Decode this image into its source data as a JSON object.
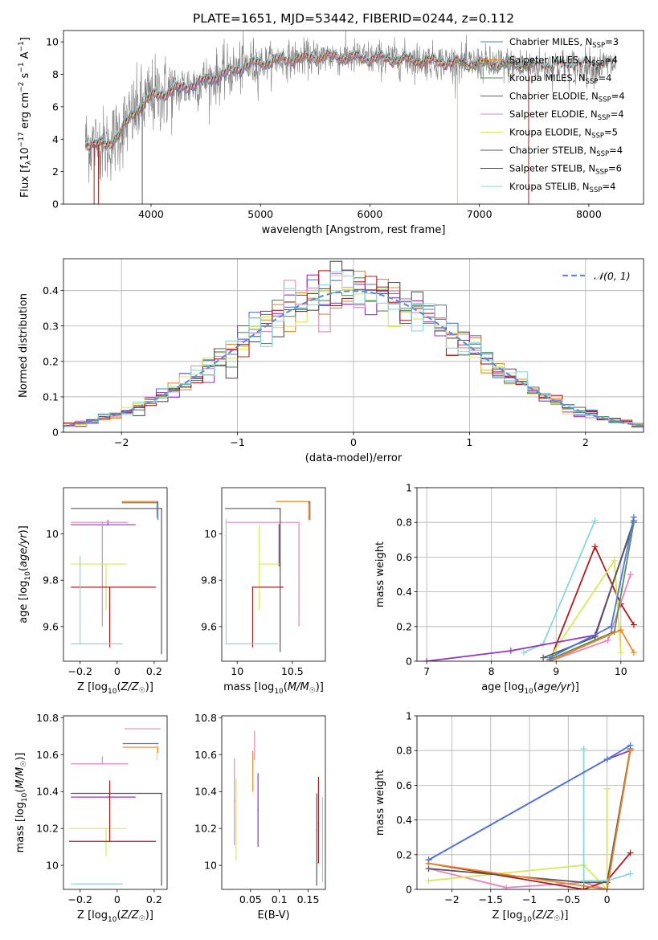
{
  "figure": {
    "title": "PLATE=1651, MJD=53442, FIBERID=0244, z=0.112"
  },
  "colors": {
    "series": [
      "#4a78d6",
      "#e8882a",
      "#5b8d5e",
      "#9633c4",
      "#e483c0",
      "#d8e856",
      "#555555",
      "#b01a1a",
      "#86d8dd"
    ],
    "spectrum_gray": "#808080",
    "normal_curve": "#5b8fd9",
    "grid": "#b0b0b0"
  },
  "legend_spectrum": [
    {
      "name": "Chabrier MILES, N",
      "sub": "SSP",
      "tail": "=3"
    },
    {
      "name": "Salpeter MILES, N",
      "sub": "SSP",
      "tail": "=4"
    },
    {
      "name": "Kroupa MILES, N",
      "sub": "SSP",
      "tail": "=4"
    },
    {
      "name": "Chabrier ELODIE, N",
      "sub": "SSP",
      "tail": "=4"
    },
    {
      "name": "Salpeter ELODIE, N",
      "sub": "SSP",
      "tail": "=4"
    },
    {
      "name": "Kroupa ELODIE, N",
      "sub": "SSP",
      "tail": "=5"
    },
    {
      "name": "Chabrier STELIB, N",
      "sub": "SSP",
      "tail": "=4"
    },
    {
      "name": "Salpeter STELIB, N",
      "sub": "SSP",
      "tail": "=6"
    },
    {
      "name": "Kroupa STELIB, N",
      "sub": "SSP",
      "tail": "=4"
    }
  ],
  "legend_hist": "𝒩(0, 1)",
  "chart_data": [
    {
      "id": "spectrum",
      "type": "line",
      "title": "PLATE=1651, MJD=53442, FIBERID=0244, z=0.112",
      "xlabel": "wavelength [Angstrom, rest frame]",
      "ylabel": "Flux [f_λ 10^-17 erg cm^-2 s^-1 A^-1]",
      "xlim": [
        3200,
        8500
      ],
      "ylim": [
        0,
        10.7
      ],
      "xticks": [
        4000,
        5000,
        6000,
        7000,
        8000
      ],
      "yticks": [
        0,
        2,
        4,
        6,
        8,
        10
      ],
      "continuum": [
        [
          3400,
          3.8
        ],
        [
          3600,
          3.6
        ],
        [
          3700,
          4.3
        ],
        [
          3800,
          5.2
        ],
        [
          3900,
          6.0
        ],
        [
          4000,
          6.6
        ],
        [
          4100,
          6.8
        ],
        [
          4300,
          7.2
        ],
        [
          4500,
          7.6
        ],
        [
          4700,
          8.1
        ],
        [
          4900,
          8.6
        ],
        [
          5200,
          8.9
        ],
        [
          5600,
          9.1
        ],
        [
          6000,
          9.0
        ],
        [
          6400,
          8.9
        ],
        [
          6800,
          8.7
        ],
        [
          7200,
          8.6
        ],
        [
          7600,
          8.5
        ],
        [
          8000,
          8.5
        ],
        [
          8250,
          8.6
        ]
      ],
      "series": [
        {
          "name": "Chabrier MILES, N_SSP=3",
          "range": [
            3400,
            7500
          ]
        },
        {
          "name": "Salpeter MILES, N_SSP=4",
          "range": [
            3400,
            7500
          ]
        },
        {
          "name": "Kroupa MILES, N_SSP=4",
          "range": [
            3400,
            7500
          ]
        },
        {
          "name": "Chabrier ELODIE, N_SSP=4",
          "range": [
            3400,
            6800
          ]
        },
        {
          "name": "Salpeter ELODIE, N_SSP=4",
          "range": [
            3400,
            6800
          ]
        },
        {
          "name": "Kroupa ELODIE, N_SSP=5",
          "range": [
            3400,
            6800
          ]
        },
        {
          "name": "Chabrier STELIB, N_SSP=4",
          "range": [
            3400,
            8250
          ]
        },
        {
          "name": "Salpeter STELIB, N_SSP=6",
          "range": [
            3400,
            8250
          ]
        },
        {
          "name": "Kroupa STELIB, N_SSP=4",
          "range": [
            3400,
            8250
          ]
        }
      ]
    },
    {
      "id": "residuals",
      "type": "step-histogram",
      "xlabel": "(data-model)/error",
      "ylabel": "Normed distribution",
      "xlim": [
        -2.5,
        2.5
      ],
      "ylim": [
        0,
        0.49
      ],
      "xticks": [
        -2,
        -1,
        0,
        1,
        2
      ],
      "yticks": [
        0.0,
        0.1,
        0.2,
        0.3,
        0.4
      ],
      "bin_width": 0.1,
      "grid": true,
      "legend": "top-right"
    },
    {
      "id": "age-vs-Z",
      "type": "errorbar",
      "xlabel": "Z [log10(Z/Z☉)]",
      "ylabel": "age [log10(age/yr)]",
      "xlim": [
        -0.29,
        0.27
      ],
      "ylim": [
        9.45,
        10.2
      ],
      "xticks": [
        -0.2,
        0.0,
        0.2
      ],
      "yticks": [
        9.6,
        9.8,
        10.0
      ],
      "points": [
        {
          "s": 0,
          "x": 0.22,
          "y": 10.14,
          "xerr": 0.0,
          "yerr": [
            0.08,
            0.0
          ]
        },
        {
          "s": 1,
          "x": 0.215,
          "y": 10.14,
          "xerr": [
            0.19,
            0.0
          ],
          "yerr": [
            0.07,
            0.0
          ]
        },
        {
          "s": 2,
          "x": 0.215,
          "y": 10.135,
          "xerr": [
            0.19,
            0.0
          ],
          "yerr": [
            0.0,
            0.0
          ]
        },
        {
          "s": 3,
          "x": -0.05,
          "y": 10.04,
          "xerr": [
            0.2,
            0.15
          ],
          "yerr": [
            0.0,
            0.02
          ]
        },
        {
          "s": 4,
          "x": -0.08,
          "y": 10.05,
          "xerr": [
            0.17,
            0.14
          ],
          "yerr": [
            0.45,
            0.0
          ]
        },
        {
          "s": 5,
          "x": -0.06,
          "y": 9.87,
          "xerr": [
            0.19,
            0.11
          ],
          "yerr": [
            0.2,
            0.0
          ]
        },
        {
          "s": 6,
          "x": 0.24,
          "y": 10.11,
          "xerr": [
            0.49,
            0.0
          ],
          "yerr": [
            0.63,
            0.0
          ]
        },
        {
          "s": 7,
          "x": -0.04,
          "y": 9.77,
          "xerr": [
            0.21,
            0.25
          ],
          "yerr": [
            0.26,
            0.0
          ]
        },
        {
          "s": 8,
          "x": -0.2,
          "y": 9.525,
          "xerr": [
            0.05,
            0.23
          ],
          "yerr": [
            0.0,
            0.38
          ]
        }
      ]
    },
    {
      "id": "age-vs-mass",
      "type": "errorbar",
      "xlabel": "mass [log10(M/M☉)]",
      "ylabel": "",
      "xlim": [
        9.86,
        10.8
      ],
      "ylim": [
        9.45,
        10.2
      ],
      "xticks": [
        10.0,
        10.5
      ],
      "yticks": [
        9.6,
        9.8,
        10.0
      ],
      "points": [
        {
          "s": 0,
          "x": 10.66,
          "y": 10.14,
          "xerr": 0.0,
          "yerr": [
            0.08,
            0.0
          ]
        },
        {
          "s": 1,
          "x": 10.65,
          "y": 10.14,
          "xerr": [
            0.3,
            0.0
          ],
          "yerr": [
            0.08,
            0.0
          ]
        },
        {
          "s": 2,
          "x": 10.65,
          "y": 10.135,
          "xerr": [
            0.0,
            0.0
          ],
          "yerr": [
            0.0,
            0.0
          ]
        },
        {
          "s": 3,
          "x": 10.38,
          "y": 10.04,
          "xerr": 0.0,
          "yerr": [
            0.18,
            0.0
          ]
        },
        {
          "s": 4,
          "x": 10.56,
          "y": 10.05,
          "xerr": [
            0.66,
            0.0
          ],
          "yerr": [
            0.45,
            0.0
          ]
        },
        {
          "s": 5,
          "x": 10.2,
          "y": 9.87,
          "xerr": [
            0.0,
            0.2
          ],
          "yerr": [
            0.2,
            0.17
          ]
        },
        {
          "s": 6,
          "x": 10.39,
          "y": 10.11,
          "xerr": [
            0.5,
            0.0
          ],
          "yerr": [
            0.62,
            0.0
          ]
        },
        {
          "s": 7,
          "x": 10.14,
          "y": 9.77,
          "xerr": [
            0.0,
            0.28
          ],
          "yerr": [
            0.26,
            0.0
          ]
        },
        {
          "s": 8,
          "x": 9.9,
          "y": 9.525,
          "xerr": [
            0.0,
            0.47
          ],
          "yerr": [
            0.0,
            0.54
          ]
        }
      ]
    },
    {
      "id": "weight-vs-age",
      "type": "line",
      "xlabel": "age [log10(age/yr)]",
      "ylabel": "mass weight",
      "xlim": [
        6.85,
        10.35
      ],
      "ylim": [
        0,
        1.0
      ],
      "xticks": [
        7,
        8,
        9,
        10
      ],
      "yticks": [
        0.0,
        0.2,
        0.4,
        0.6,
        0.8,
        1.0
      ],
      "grid": true,
      "series": [
        {
          "s": 8,
          "points": [
            [
              8.5,
              0.05
            ],
            [
              8.8,
              0.1
            ],
            [
              9.6,
              0.81
            ]
          ]
        },
        {
          "s": 7,
          "points": [
            [
              8.9,
              0.0
            ],
            [
              9.6,
              0.66
            ],
            [
              10.0,
              0.33
            ],
            [
              10.2,
              0.21
            ]
          ]
        },
        {
          "s": 5,
          "points": [
            [
              8.9,
              0.02
            ],
            [
              9.9,
              0.58
            ],
            [
              10.0,
              0.05
            ]
          ]
        },
        {
          "s": 3,
          "points": [
            [
              7.0,
              0.0
            ],
            [
              8.3,
              0.06
            ],
            [
              9.6,
              0.15
            ],
            [
              10.2,
              0.8
            ]
          ]
        },
        {
          "s": 6,
          "points": [
            [
              8.8,
              0.02
            ],
            [
              9.6,
              0.14
            ],
            [
              10.2,
              0.81
            ]
          ]
        },
        {
          "s": 4,
          "points": [
            [
              8.9,
              0.0
            ],
            [
              9.8,
              0.12
            ],
            [
              10.15,
              0.5
            ]
          ]
        },
        {
          "s": 2,
          "points": [
            [
              8.9,
              0.01
            ],
            [
              9.9,
              0.17
            ],
            [
              10.2,
              0.8
            ]
          ]
        },
        {
          "s": 1,
          "points": [
            [
              8.9,
              0.0
            ],
            [
              10.0,
              0.18
            ],
            [
              10.2,
              0.05
            ]
          ]
        },
        {
          "s": 0,
          "points": [
            [
              8.9,
              0.02
            ],
            [
              9.85,
              0.2
            ],
            [
              10.2,
              0.83
            ]
          ]
        }
      ]
    },
    {
      "id": "mass-vs-Z",
      "type": "errorbar",
      "xlabel": "Z [log10(Z/Z☉)]",
      "ylabel": "mass [log10(M/M☉)]",
      "xlim": [
        -0.29,
        0.27
      ],
      "ylim": [
        9.87,
        10.81
      ],
      "xticks": [
        -0.2,
        0.0,
        0.2
      ],
      "yticks": [
        10.0,
        10.2,
        10.4,
        10.6,
        10.8
      ],
      "points": [
        {
          "s": 0,
          "x": 0.22,
          "y": 10.66,
          "xerr": [
            0.19,
            0.0
          ],
          "yerr": [
            0.0,
            0.0
          ]
        },
        {
          "s": 4,
          "x": 0.23,
          "y": 10.74,
          "xerr": [
            0.19,
            0.0
          ],
          "yerr": [
            0.0,
            0.0
          ]
        },
        {
          "s": 1,
          "x": 0.22,
          "y": 10.64,
          "xerr": [
            0.19,
            0.0
          ],
          "yerr": [
            0.03,
            0.0
          ]
        },
        {
          "s": 5,
          "x": 0.215,
          "y": 10.65,
          "xerr": 0.0,
          "yerr": [
            0.08,
            0.0
          ]
        },
        {
          "s": 3,
          "x": -0.05,
          "y": 10.37,
          "xerr": [
            0.2,
            0.15
          ],
          "yerr": [
            0.0,
            0.0
          ]
        },
        {
          "s": 4,
          "x": -0.08,
          "y": 10.55,
          "xerr": [
            0.17,
            0.14
          ],
          "yerr": [
            0.0,
            0.04
          ]
        },
        {
          "s": 5,
          "x": -0.06,
          "y": 10.2,
          "xerr": [
            0.2,
            0.11
          ],
          "yerr": [
            0.15,
            0.0
          ]
        },
        {
          "s": 6,
          "x": 0.24,
          "y": 10.39,
          "xerr": [
            0.49,
            0.0
          ],
          "yerr": [
            0.5,
            0.0
          ]
        },
        {
          "s": 7,
          "x": -0.04,
          "y": 10.13,
          "xerr": [
            0.22,
            0.25
          ],
          "yerr": [
            0.0,
            0.33
          ]
        },
        {
          "s": 8,
          "x": -0.2,
          "y": 9.9,
          "xerr": [
            0.05,
            0.23
          ],
          "yerr": [
            0.0,
            0.0
          ]
        }
      ]
    },
    {
      "id": "mass-vs-ebv",
      "type": "errorbar",
      "xlabel": "E(B-V)",
      "ylabel": "",
      "xlim": [
        0.0,
        0.18
      ],
      "ylim": [
        9.87,
        10.81
      ],
      "xticks": [
        0.05,
        0.1,
        0.15
      ],
      "yticks": [
        10.0,
        10.2,
        10.4,
        10.6,
        10.8
      ],
      "points": [
        {
          "s": 4,
          "x": 0.057,
          "y": 10.65,
          "xerr": 0.0,
          "yerr": [
            0.08,
            0.08
          ]
        },
        {
          "s": 1,
          "x": 0.054,
          "y": 10.54,
          "xerr": 0.0,
          "yerr": [
            0.14,
            0.08
          ]
        },
        {
          "s": 3,
          "x": 0.063,
          "y": 10.3,
          "xerr": 0.0,
          "yerr": [
            0.2,
            0.2
          ]
        },
        {
          "s": 4,
          "x": 0.022,
          "y": 10.35,
          "xerr": 0.0,
          "yerr": [
            0.24,
            0.23
          ]
        },
        {
          "s": 5,
          "x": 0.025,
          "y": 10.25,
          "xerr": 0.0,
          "yerr": [
            0.22,
            0.22
          ]
        },
        {
          "s": 6,
          "x": 0.165,
          "y": 10.19,
          "xerr": 0.0,
          "yerr": [
            0.3,
            0.2
          ]
        },
        {
          "s": 7,
          "x": 0.168,
          "y": 10.23,
          "xerr": 0.0,
          "yerr": [
            0.22,
            0.25
          ]
        },
        {
          "s": 8,
          "x": 0.175,
          "y": 10.14,
          "xerr": 0.0,
          "yerr": [
            0.23,
            0.23
          ]
        }
      ]
    },
    {
      "id": "weight-vs-Z",
      "type": "line",
      "xlabel": "Z [log10(Z/Z☉)]",
      "ylabel": "mass weight",
      "xlim": [
        -2.45,
        0.47
      ],
      "ylim": [
        0,
        1.0
      ],
      "xticks": [
        -2.0,
        -1.5,
        -1.0,
        -0.5,
        0.0
      ],
      "yticks": [
        0.0,
        0.2,
        0.4,
        0.6,
        0.8,
        1.0
      ],
      "grid": true,
      "series": [
        {
          "s": 4,
          "points": [
            [
              -2.3,
              0.12
            ],
            [
              -1.3,
              0.01
            ],
            [
              -0.3,
              0.04
            ],
            [
              0.0,
              0.0
            ],
            [
              0.3,
              0.8
            ]
          ]
        },
        {
          "s": 5,
          "points": [
            [
              -2.3,
              0.05
            ],
            [
              -0.3,
              0.14
            ],
            [
              0.0,
              0.0
            ],
            [
              0.0,
              0.58
            ]
          ]
        },
        {
          "s": 7,
          "points": [
            [
              -2.3,
              0.15
            ],
            [
              -0.3,
              0.0
            ],
            [
              0.0,
              0.05
            ],
            [
              0.3,
              0.21
            ]
          ]
        },
        {
          "s": 6,
          "points": [
            [
              -2.3,
              0.12
            ],
            [
              -0.3,
              0.04
            ],
            [
              0.0,
              0.04
            ],
            [
              0.3,
              0.81
            ]
          ]
        },
        {
          "s": 8,
          "points": [
            [
              -0.3,
              0.81
            ],
            [
              -0.3,
              0.05
            ],
            [
              0.0,
              0.05
            ],
            [
              0.3,
              0.09
            ]
          ]
        },
        {
          "s": 3,
          "points": [
            [
              -2.3,
              0.17
            ],
            [
              0.0,
              0.75
            ],
            [
              0.3,
              0.8
            ]
          ]
        },
        {
          "s": 1,
          "points": [
            [
              -2.3,
              0.15
            ],
            [
              0.0,
              0.0
            ],
            [
              0.3,
              0.8
            ]
          ]
        },
        {
          "s": 0,
          "points": [
            [
              -2.3,
              0.17
            ],
            [
              0.0,
              0.75
            ],
            [
              0.3,
              0.83
            ]
          ]
        }
      ]
    }
  ]
}
